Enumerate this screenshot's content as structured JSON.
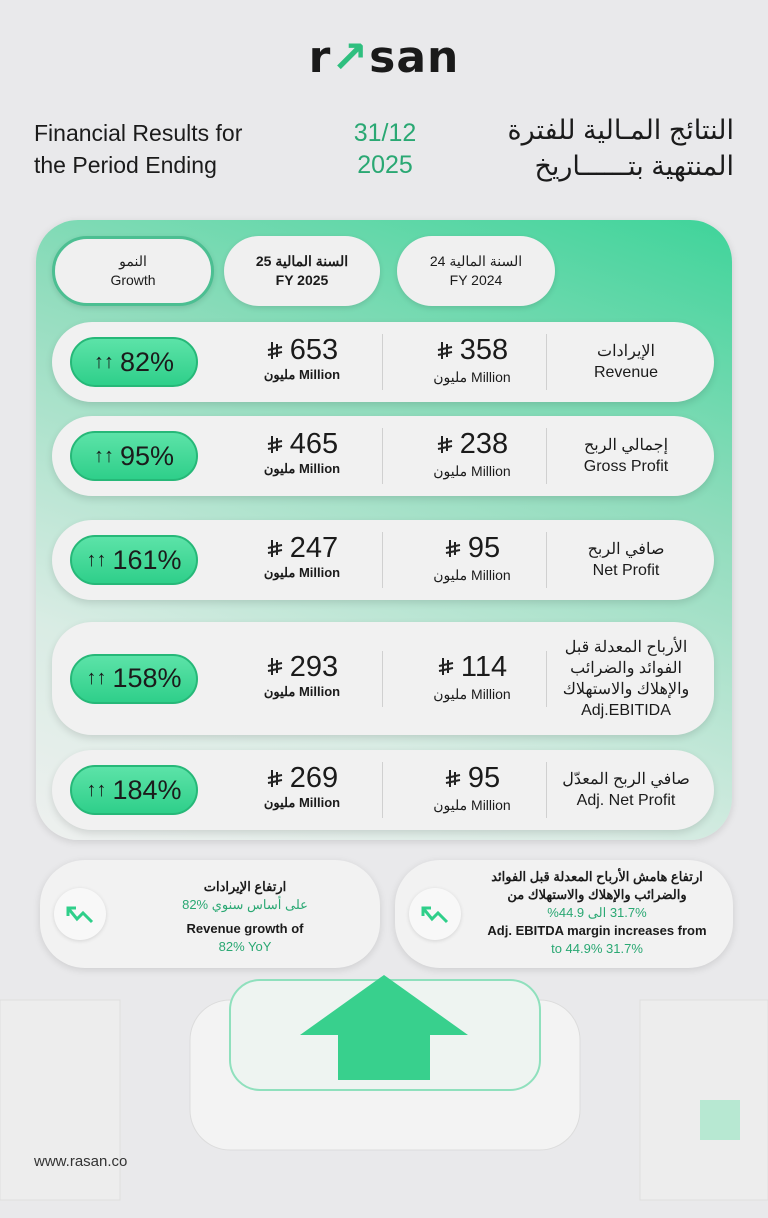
{
  "brand": {
    "logo_pre": "r",
    "logo_arrow": "↗",
    "logo_post": "san"
  },
  "header": {
    "title_en_1": "Financial Results for",
    "title_en_2": "the Period Ending",
    "date_1": "31/12",
    "date_2": "2025",
    "title_ar_1": "النتائج المـالية للفترة",
    "title_ar_2": "المنتهية بتــــــاريخ"
  },
  "columns": {
    "growth_ar": "النمو",
    "growth_en": "Growth",
    "fy25_ar": "السنة المالية 25",
    "fy25_en": "FY 2025",
    "fy24_ar": "السنة المالية  24",
    "fy24_en": "FY 2024"
  },
  "unit": {
    "fy25": "مليون Million",
    "fy24": "مليون Million"
  },
  "rows": [
    {
      "label_ar": "الإيرادات",
      "label_en": "Revenue",
      "fy24": "358",
      "fy25": "653",
      "growth": "82%"
    },
    {
      "label_ar": "إجمالي الربح",
      "label_en": "Gross Profit",
      "fy24": "238",
      "fy25": "465",
      "growth": "95%"
    },
    {
      "label_ar": "صافي الربح",
      "label_en": "Net Profit",
      "fy24": "95",
      "fy25": "247",
      "growth": "161%"
    },
    {
      "label_ar": "الأرباح المعدلة قبل الفوائد والضرائب والإهلاك والاستهلاك",
      "label_en": "Adj.EBITIDA",
      "fy24": "114",
      "fy25": "293",
      "growth": "158%"
    },
    {
      "label_ar": "صافي الربح المعدّل",
      "label_en": "Adj. Net Profit",
      "fy24": "95",
      "fy25": "269",
      "growth": "184%"
    }
  ],
  "highlights": [
    {
      "ar_title": "ارتفاع الإيرادات",
      "ar_value": "82% على أساس سنوي",
      "en_title": "Revenue growth of",
      "en_value": "82% YoY"
    },
    {
      "ar_title": "ارتفاع هامش الأرباح المعدلة قبل الفوائد والضرائب والإهلاك والاستهلاك من",
      "ar_value": "31.7% الى 44.9%",
      "en_title": "Adj. EBITDA margin increases from",
      "en_value": "31.7% to 44.9%"
    }
  ],
  "icons": {
    "growth": "double-up-arrow-icon",
    "currency": "saudi-riyal-icon",
    "trend": "trend-up-icon"
  },
  "colors": {
    "accent": "#2fcf8a",
    "accent_text": "#2aa873"
  },
  "footer": {
    "url": "www.rasan.co"
  }
}
